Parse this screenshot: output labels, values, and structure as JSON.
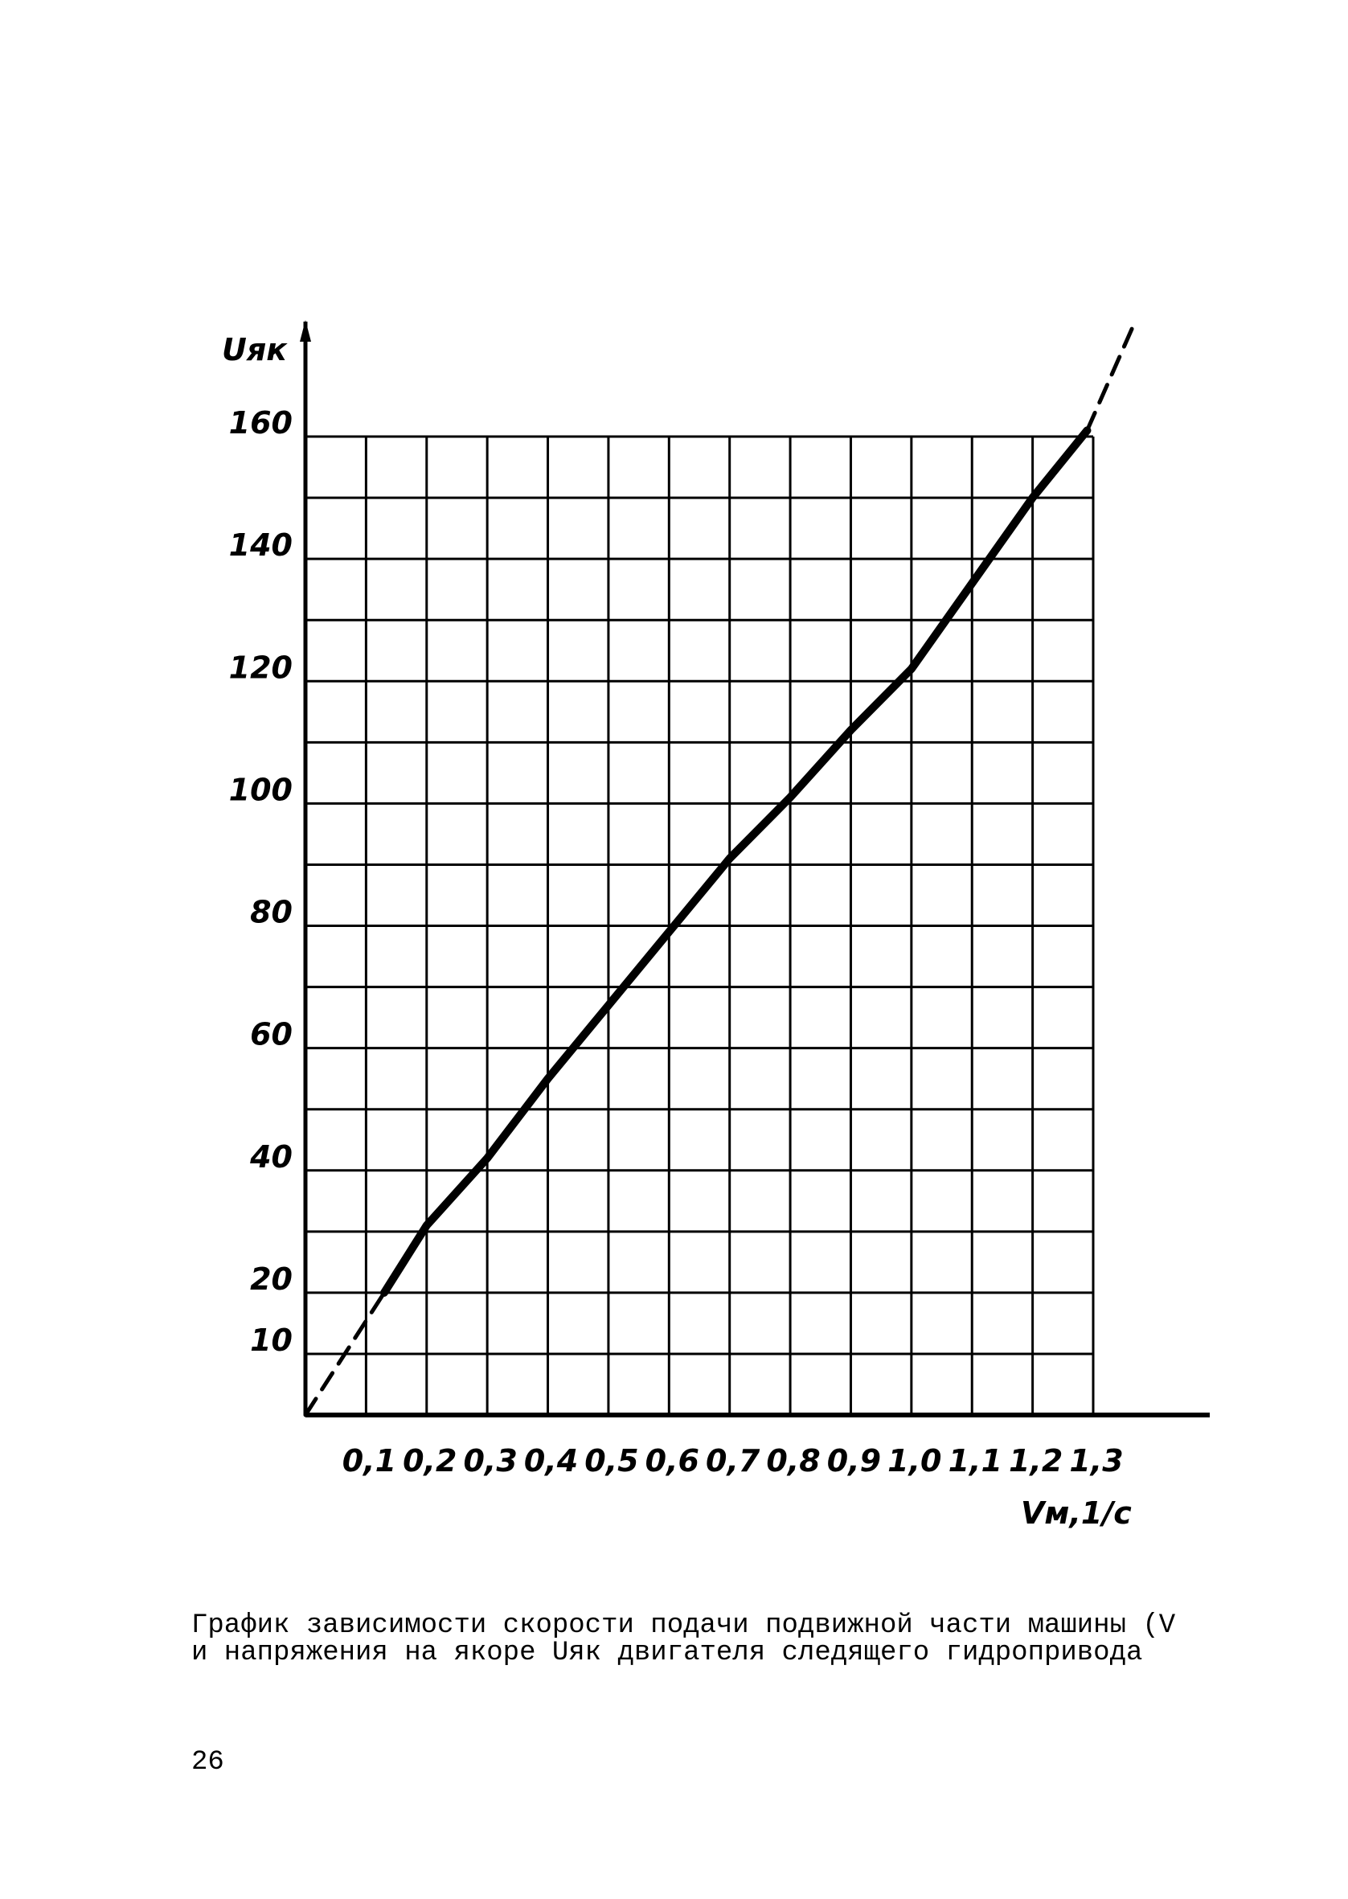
{
  "chart_data": {
    "type": "line",
    "y_label": "Uяк",
    "x_label": "Vм,1/с",
    "x": [
      0,
      0.13,
      0.2,
      0.3,
      0.4,
      0.5,
      0.6,
      0.7,
      0.8,
      0.9,
      1.0,
      1.1,
      1.2,
      1.29,
      1.37
    ],
    "series": [
      {
        "color": "#000000",
        "style": "solid",
        "values": [
          null,
          20,
          31,
          42,
          55,
          67,
          79,
          91,
          101,
          112,
          122,
          136,
          150,
          161,
          null
        ]
      },
      {
        "color": "#000000",
        "style": "dashed",
        "values": [
          0,
          20,
          null,
          null,
          null,
          null,
          null,
          null,
          null,
          null,
          null,
          null,
          null,
          161,
          179
        ]
      }
    ],
    "xlim": [
      0,
      1.3
    ],
    "ylim": [
      0,
      160
    ],
    "xticks": [
      {
        "value": 0.1,
        "label": "0,1"
      },
      {
        "value": 0.2,
        "label": "0,2"
      },
      {
        "value": 0.3,
        "label": "0,3"
      },
      {
        "value": 0.4,
        "label": "0,4"
      },
      {
        "value": 0.5,
        "label": "0,5"
      },
      {
        "value": 0.6,
        "label": "0,6"
      },
      {
        "value": 0.7,
        "label": "0,7"
      },
      {
        "value": 0.8,
        "label": "0,8"
      },
      {
        "value": 0.9,
        "label": "0,9"
      },
      {
        "value": 1.0,
        "label": "1,0"
      },
      {
        "value": 1.1,
        "label": "1,1"
      },
      {
        "value": 1.2,
        "label": "1,2"
      },
      {
        "value": 1.3,
        "label": "1,3"
      }
    ],
    "yticks": [
      10,
      20,
      40,
      60,
      80,
      100,
      120,
      140,
      160
    ],
    "grid": true
  },
  "caption": [
    "График зависимости скорости подачи подвижной части машины (V",
    "и напряжения на якоре Uяк двигателя следящего гидропривода"
  ],
  "page_number": "26"
}
